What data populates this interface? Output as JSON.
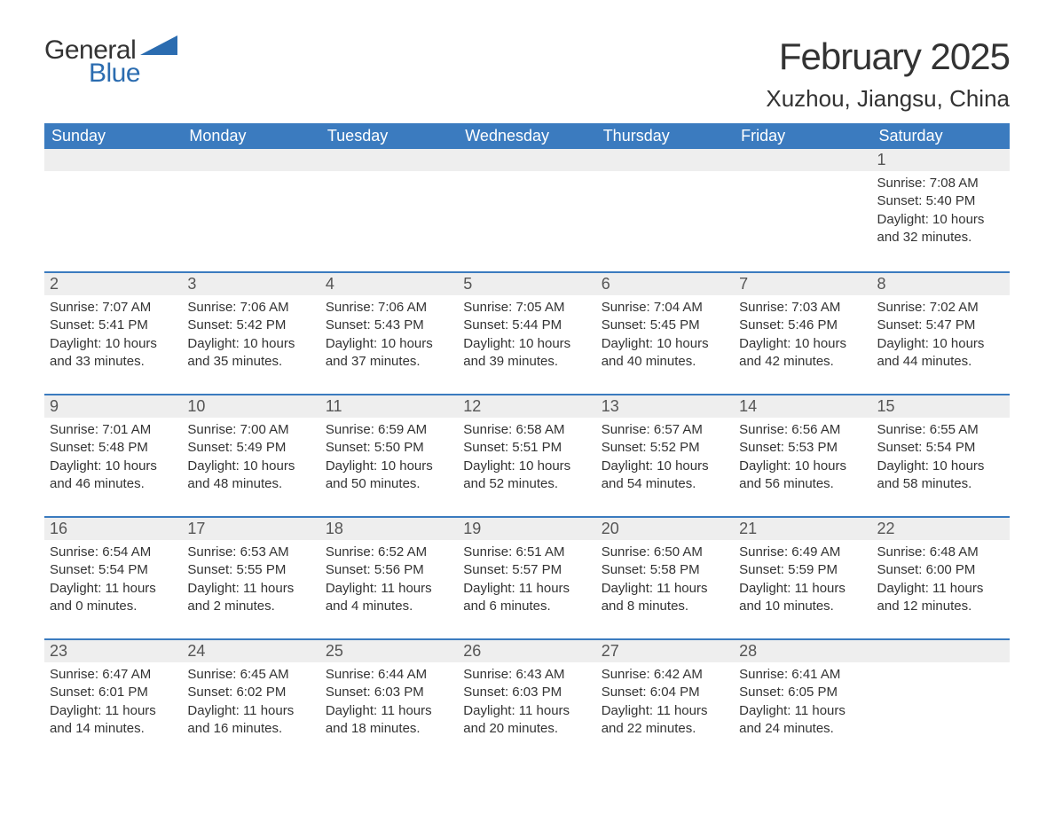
{
  "logo": {
    "part1": "General",
    "part2": "Blue"
  },
  "title": "February 2025",
  "location": "Xuzhou, Jiangsu, China",
  "colors": {
    "header_bg": "#3b7bbf",
    "header_text": "#ffffff",
    "daynum_bg": "#eeeeee",
    "row_divider": "#3b7bbf",
    "text": "#333333",
    "logo_blue": "#2b6cb0",
    "background": "#ffffff"
  },
  "columns": [
    "Sunday",
    "Monday",
    "Tuesday",
    "Wednesday",
    "Thursday",
    "Friday",
    "Saturday"
  ],
  "weeks": [
    [
      {},
      {},
      {},
      {},
      {},
      {},
      {
        "day": "1",
        "sunrise": "7:08 AM",
        "sunset": "5:40 PM",
        "daylight": "10 hours and 32 minutes."
      }
    ],
    [
      {
        "day": "2",
        "sunrise": "7:07 AM",
        "sunset": "5:41 PM",
        "daylight": "10 hours and 33 minutes."
      },
      {
        "day": "3",
        "sunrise": "7:06 AM",
        "sunset": "5:42 PM",
        "daylight": "10 hours and 35 minutes."
      },
      {
        "day": "4",
        "sunrise": "7:06 AM",
        "sunset": "5:43 PM",
        "daylight": "10 hours and 37 minutes."
      },
      {
        "day": "5",
        "sunrise": "7:05 AM",
        "sunset": "5:44 PM",
        "daylight": "10 hours and 39 minutes."
      },
      {
        "day": "6",
        "sunrise": "7:04 AM",
        "sunset": "5:45 PM",
        "daylight": "10 hours and 40 minutes."
      },
      {
        "day": "7",
        "sunrise": "7:03 AM",
        "sunset": "5:46 PM",
        "daylight": "10 hours and 42 minutes."
      },
      {
        "day": "8",
        "sunrise": "7:02 AM",
        "sunset": "5:47 PM",
        "daylight": "10 hours and 44 minutes."
      }
    ],
    [
      {
        "day": "9",
        "sunrise": "7:01 AM",
        "sunset": "5:48 PM",
        "daylight": "10 hours and 46 minutes."
      },
      {
        "day": "10",
        "sunrise": "7:00 AM",
        "sunset": "5:49 PM",
        "daylight": "10 hours and 48 minutes."
      },
      {
        "day": "11",
        "sunrise": "6:59 AM",
        "sunset": "5:50 PM",
        "daylight": "10 hours and 50 minutes."
      },
      {
        "day": "12",
        "sunrise": "6:58 AM",
        "sunset": "5:51 PM",
        "daylight": "10 hours and 52 minutes."
      },
      {
        "day": "13",
        "sunrise": "6:57 AM",
        "sunset": "5:52 PM",
        "daylight": "10 hours and 54 minutes."
      },
      {
        "day": "14",
        "sunrise": "6:56 AM",
        "sunset": "5:53 PM",
        "daylight": "10 hours and 56 minutes."
      },
      {
        "day": "15",
        "sunrise": "6:55 AM",
        "sunset": "5:54 PM",
        "daylight": "10 hours and 58 minutes."
      }
    ],
    [
      {
        "day": "16",
        "sunrise": "6:54 AM",
        "sunset": "5:54 PM",
        "daylight": "11 hours and 0 minutes."
      },
      {
        "day": "17",
        "sunrise": "6:53 AM",
        "sunset": "5:55 PM",
        "daylight": "11 hours and 2 minutes."
      },
      {
        "day": "18",
        "sunrise": "6:52 AM",
        "sunset": "5:56 PM",
        "daylight": "11 hours and 4 minutes."
      },
      {
        "day": "19",
        "sunrise": "6:51 AM",
        "sunset": "5:57 PM",
        "daylight": "11 hours and 6 minutes."
      },
      {
        "day": "20",
        "sunrise": "6:50 AM",
        "sunset": "5:58 PM",
        "daylight": "11 hours and 8 minutes."
      },
      {
        "day": "21",
        "sunrise": "6:49 AM",
        "sunset": "5:59 PM",
        "daylight": "11 hours and 10 minutes."
      },
      {
        "day": "22",
        "sunrise": "6:48 AM",
        "sunset": "6:00 PM",
        "daylight": "11 hours and 12 minutes."
      }
    ],
    [
      {
        "day": "23",
        "sunrise": "6:47 AM",
        "sunset": "6:01 PM",
        "daylight": "11 hours and 14 minutes."
      },
      {
        "day": "24",
        "sunrise": "6:45 AM",
        "sunset": "6:02 PM",
        "daylight": "11 hours and 16 minutes."
      },
      {
        "day": "25",
        "sunrise": "6:44 AM",
        "sunset": "6:03 PM",
        "daylight": "11 hours and 18 minutes."
      },
      {
        "day": "26",
        "sunrise": "6:43 AM",
        "sunset": "6:03 PM",
        "daylight": "11 hours and 20 minutes."
      },
      {
        "day": "27",
        "sunrise": "6:42 AM",
        "sunset": "6:04 PM",
        "daylight": "11 hours and 22 minutes."
      },
      {
        "day": "28",
        "sunrise": "6:41 AM",
        "sunset": "6:05 PM",
        "daylight": "11 hours and 24 minutes."
      },
      {}
    ]
  ],
  "labels": {
    "sunrise": "Sunrise: ",
    "sunset": "Sunset: ",
    "daylight": "Daylight: "
  }
}
